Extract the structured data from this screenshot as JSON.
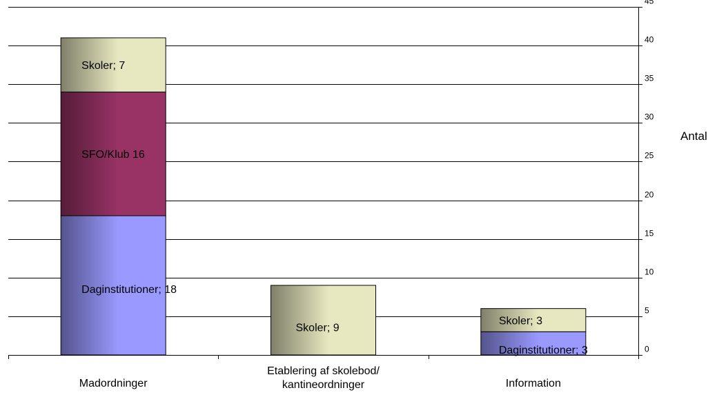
{
  "chart_data": {
    "type": "bar",
    "stacked": true,
    "title": "",
    "xlabel": "",
    "ylabel": "Antal",
    "ylim": [
      0,
      45
    ],
    "y_ticks": [
      0,
      5,
      10,
      15,
      20,
      25,
      30,
      35,
      40,
      45
    ],
    "y_axis_side": "right",
    "grid": true,
    "legend": "none",
    "categories": [
      [
        "Madordninger"
      ],
      [
        "Etablering af skolebod/",
        "kantineordninger"
      ],
      [
        "Information"
      ]
    ],
    "series": [
      {
        "name": "Daginstitutioner",
        "color": "#9999ff",
        "values": [
          18,
          0,
          3
        ]
      },
      {
        "name": "SFO/Klub",
        "color": "#993366",
        "values": [
          16,
          0,
          0
        ]
      },
      {
        "name": "Skoler",
        "color": "#e8e8c0",
        "values": [
          7,
          9,
          3
        ]
      }
    ],
    "data_labels": [
      {
        "category": 0,
        "series": 0,
        "text": "Daginstitutioner; 18"
      },
      {
        "category": 0,
        "series": 1,
        "text": "SFO/Klub 16"
      },
      {
        "category": 0,
        "series": 2,
        "text": "Skoler; 7"
      },
      {
        "category": 1,
        "series": 2,
        "text": "Skoler; 9"
      },
      {
        "category": 2,
        "series": 0,
        "text": "Daginstitutioner; 3"
      },
      {
        "category": 2,
        "series": 2,
        "text": "Skoler; 3"
      }
    ]
  }
}
